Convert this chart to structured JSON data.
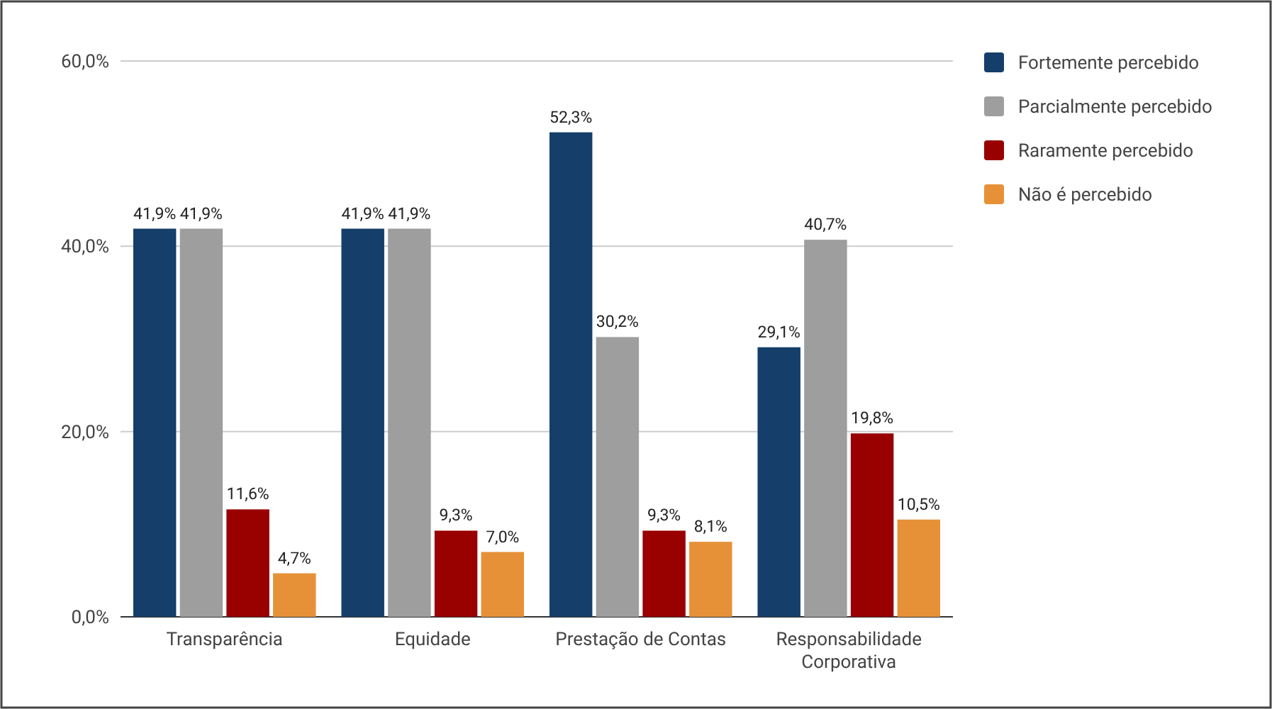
{
  "chart_data": {
    "type": "bar",
    "categories": [
      "Transparência",
      "Equidade",
      "Prestação de Contas",
      "Responsabilidade Corporativa"
    ],
    "series": [
      {
        "name": "Fortemente percebido",
        "color": "#153e6a",
        "values": [
          41.9,
          41.9,
          52.3,
          29.1
        ],
        "value_labels": [
          "41,9%",
          "41,9%",
          "52,3%",
          "29,1%"
        ]
      },
      {
        "name": "Parcialmente percebido",
        "color": "#9e9e9e",
        "values": [
          41.9,
          41.9,
          30.2,
          40.7
        ],
        "value_labels": [
          "41,9%",
          "41,9%",
          "30,2%",
          "40,7%"
        ]
      },
      {
        "name": "Raramente percebido",
        "color": "#990000",
        "values": [
          11.6,
          9.3,
          9.3,
          19.8
        ],
        "value_labels": [
          "11,6%",
          "9,3%",
          "9,3%",
          "19,8%"
        ]
      },
      {
        "name": "Não é percebido",
        "color": "#e69138",
        "values": [
          4.7,
          7.0,
          8.1,
          10.5
        ],
        "value_labels": [
          "4,7%",
          "7,0%",
          "8,1%",
          "10,5%"
        ]
      }
    ],
    "ylim": [
      0,
      60
    ],
    "yticks": [
      {
        "value": 0,
        "label": "0,0%"
      },
      {
        "value": 20,
        "label": "20,0%"
      },
      {
        "value": 40,
        "label": "40,0%"
      },
      {
        "value": 60,
        "label": "60,0%"
      }
    ],
    "grid": "y",
    "legend": "top right"
  }
}
